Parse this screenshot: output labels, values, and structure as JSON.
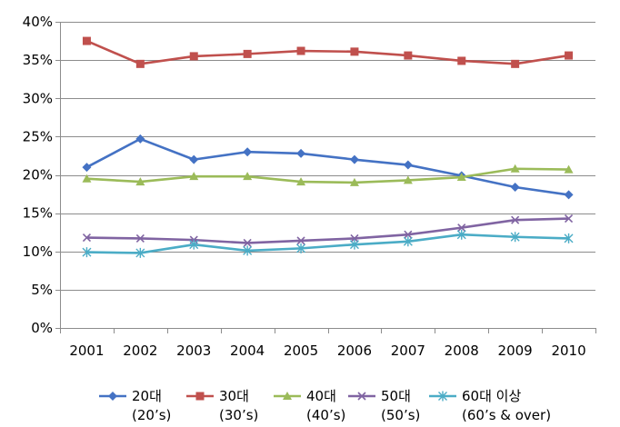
{
  "chart_data": {
    "type": "line",
    "title": "",
    "xlabel": "",
    "ylabel": "",
    "categories": [
      "2001",
      "2002",
      "2003",
      "2004",
      "2005",
      "2006",
      "2007",
      "2008",
      "2009",
      "2010"
    ],
    "ylim": [
      0,
      40
    ],
    "yticks": [
      0,
      5,
      10,
      15,
      20,
      25,
      30,
      35,
      40
    ],
    "ytick_labels": [
      "0%",
      "5%",
      "10%",
      "15%",
      "20%",
      "25%",
      "30%",
      "35%",
      "40%"
    ],
    "grid": true,
    "legend_position": "bottom",
    "series": [
      {
        "name": "20대",
        "name_sub": "(20’s)",
        "color": "#4472c4",
        "marker": "diamond",
        "values": [
          21.0,
          24.7,
          22.0,
          23.0,
          22.8,
          22.0,
          21.3,
          19.9,
          18.4,
          17.4
        ]
      },
      {
        "name": "30대",
        "name_sub": "(30’s)",
        "color": "#c0504d",
        "marker": "square",
        "values": [
          37.5,
          34.5,
          35.5,
          35.8,
          36.2,
          36.1,
          35.6,
          34.9,
          34.5,
          35.6
        ]
      },
      {
        "name": "40대",
        "name_sub": "(40’s)",
        "color": "#9bbb59",
        "marker": "triangle",
        "values": [
          19.5,
          19.1,
          19.8,
          19.8,
          19.1,
          19.0,
          19.3,
          19.7,
          20.8,
          20.7
        ]
      },
      {
        "name": "50대",
        "name_sub": "(50’s)",
        "color": "#8064a2",
        "marker": "x",
        "values": [
          11.8,
          11.7,
          11.5,
          11.1,
          11.4,
          11.7,
          12.2,
          13.1,
          14.1,
          14.3
        ]
      },
      {
        "name": "60대 이상",
        "name_sub": "(60’s & over)",
        "color": "#4bacc6",
        "marker": "star",
        "values": [
          9.9,
          9.8,
          10.9,
          10.1,
          10.4,
          10.9,
          11.3,
          12.2,
          11.9,
          11.7
        ]
      }
    ]
  }
}
